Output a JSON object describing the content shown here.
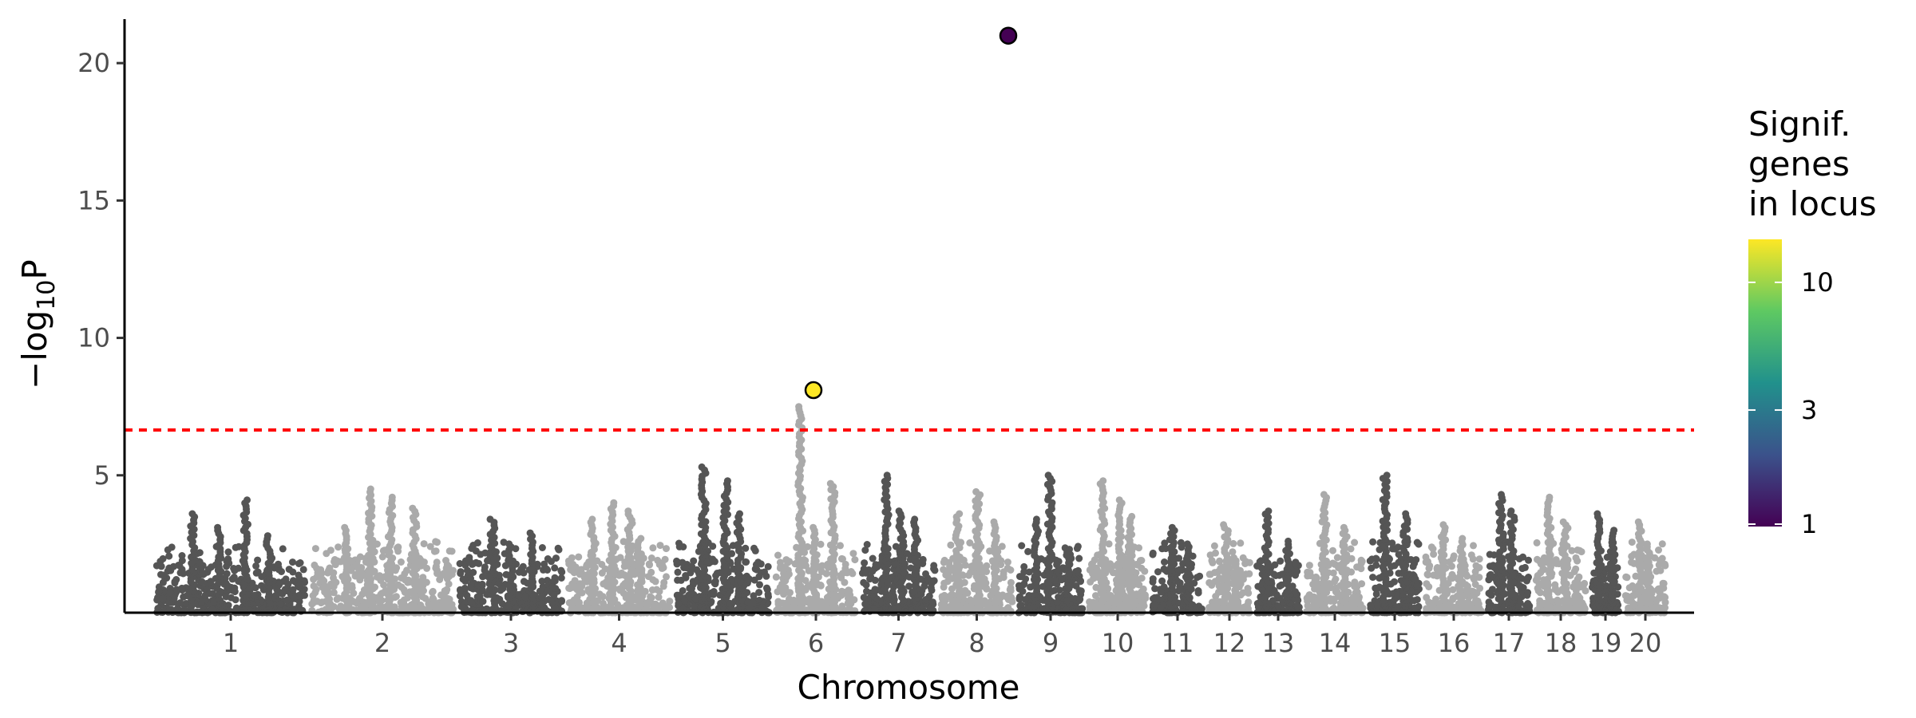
{
  "chart_data": {
    "type": "scatter",
    "subtype": "manhattan",
    "xlabel": "Chromosome",
    "ylabel_main": "−log",
    "ylabel_sub": "10",
    "ylabel_end": "P",
    "ylim": [
      0,
      21.6
    ],
    "yticks": [
      5,
      10,
      15,
      20
    ],
    "grid": false,
    "chromosomes": [
      "1",
      "2",
      "3",
      "4",
      "5",
      "6",
      "7",
      "8",
      "9",
      "10",
      "11",
      "12",
      "13",
      "14",
      "15",
      "16",
      "17",
      "18",
      "19",
      "20"
    ],
    "chromosome_colors": [
      "#555555",
      "#aaaaaa"
    ],
    "significance_threshold": 6.65,
    "threshold_color": "#ff0000",
    "peaks": [
      {
        "chr": "1",
        "values": [
          3.6,
          3.1,
          4.1,
          2.8
        ]
      },
      {
        "chr": "2",
        "values": [
          3.1,
          4.5,
          4.2,
          3.8
        ]
      },
      {
        "chr": "3",
        "values": [
          3.4,
          2.5,
          2.9
        ]
      },
      {
        "chr": "4",
        "values": [
          3.4,
          4.0,
          3.7,
          2.7
        ]
      },
      {
        "chr": "5",
        "values": [
          5.3,
          4.8,
          3.6
        ]
      },
      {
        "chr": "6",
        "values": [
          7.5,
          3.1,
          4.7
        ]
      },
      {
        "chr": "7",
        "values": [
          5.0,
          3.7,
          3.4
        ]
      },
      {
        "chr": "8",
        "values": [
          3.6,
          4.4,
          3.3
        ]
      },
      {
        "chr": "9",
        "values": [
          3.4,
          5.0,
          2.2
        ]
      },
      {
        "chr": "10",
        "values": [
          4.8,
          4.1,
          3.5
        ]
      },
      {
        "chr": "11",
        "values": [
          3.1,
          2.5
        ]
      },
      {
        "chr": "12",
        "values": [
          3.2,
          2.0
        ]
      },
      {
        "chr": "13",
        "values": [
          3.7,
          2.6
        ]
      },
      {
        "chr": "14",
        "values": [
          4.3,
          3.1
        ]
      },
      {
        "chr": "15",
        "values": [
          5.0,
          3.6
        ]
      },
      {
        "chr": "16",
        "values": [
          3.2,
          2.7
        ]
      },
      {
        "chr": "17",
        "values": [
          4.3,
          3.7
        ]
      },
      {
        "chr": "18",
        "values": [
          4.2,
          3.3
        ]
      },
      {
        "chr": "19",
        "values": [
          3.6,
          3.0
        ]
      },
      {
        "chr": "20",
        "values": [
          3.3,
          2.5
        ]
      }
    ],
    "highlighted_points": [
      {
        "chr": "8",
        "value": 21.0,
        "genes_in_locus": 1,
        "color": "#440154"
      },
      {
        "chr": "6",
        "value": 8.1,
        "genes_in_locus": 15,
        "color": "#fde725"
      }
    ],
    "legend": {
      "title_lines": [
        "Signif.",
        "genes",
        "in locus"
      ],
      "placement": "right",
      "scale": "log",
      "range": [
        1,
        15
      ],
      "ticks": [
        "1",
        "3",
        "10"
      ],
      "colormap": [
        "#440154",
        "#3b528b",
        "#21918c",
        "#5ec962",
        "#fde725"
      ]
    }
  }
}
